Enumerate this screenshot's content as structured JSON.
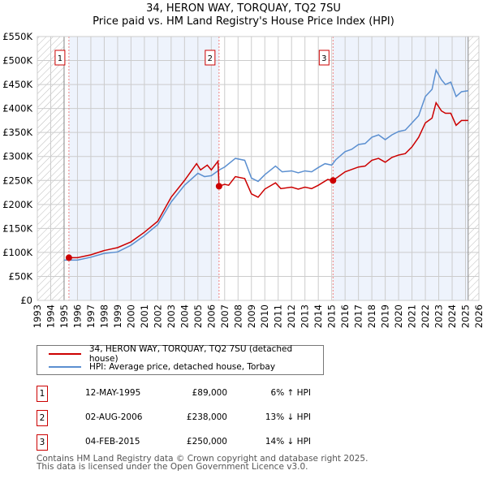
{
  "title": "34, HERON WAY, TORQUAY, TQ2 7SU",
  "subtitle": "Price paid vs. HM Land Registry's House Price Index (HPI)",
  "chart_data": {
    "type": "line",
    "title": "34, HERON WAY, TORQUAY, TQ2 7SU — Price paid vs. HM Land Registry's House Price Index (HPI)",
    "xlim": [
      1993,
      2026
    ],
    "ylim": [
      0,
      550000
    ],
    "x_ticks": [
      "1993",
      "1994",
      "1995",
      "1996",
      "1997",
      "1998",
      "1999",
      "2000",
      "2001",
      "2002",
      "2003",
      "2004",
      "2005",
      "2006",
      "2007",
      "2008",
      "2009",
      "2010",
      "2011",
      "2012",
      "2013",
      "2014",
      "2015",
      "2016",
      "2017",
      "2018",
      "2019",
      "2020",
      "2021",
      "2022",
      "2023",
      "2024",
      "2025",
      "2026"
    ],
    "y_ticks": [
      "£0",
      "£50K",
      "£100K",
      "£150K",
      "£200K",
      "£250K",
      "£300K",
      "£350K",
      "£400K",
      "£450K",
      "£500K",
      "£550K"
    ],
    "grid": true,
    "legend_position": "below",
    "series": [
      {
        "name": "34, HERON WAY, TORQUAY, TQ2 7SU (detached house)",
        "color": "#cc0000",
        "x": [
          1995.36,
          1996,
          1997,
          1998,
          1999,
          2000,
          2001,
          2002,
          2003,
          2004,
          2004.9,
          2005.2,
          2005.7,
          2006.0,
          2006.5,
          2006.58,
          2007,
          2007.3,
          2007.8,
          2008.5,
          2009.0,
          2009.5,
          2010,
          2010.8,
          2011.2,
          2012,
          2012.5,
          2013,
          2013.5,
          2014,
          2014.7,
          2015.1,
          2016,
          2017,
          2017.5,
          2018,
          2018.5,
          2019,
          2019.5,
          2020,
          2020.5,
          2021,
          2021.5,
          2022,
          2022.5,
          2022.8,
          2023.2,
          2023.5,
          2023.9,
          2024.3,
          2024.7,
          2025.2
        ],
        "y": [
          89000,
          89000,
          95000,
          104000,
          110000,
          122000,
          142000,
          165000,
          215000,
          250000,
          285000,
          272000,
          282000,
          272000,
          290000,
          238000,
          242000,
          240000,
          258000,
          254000,
          222000,
          215000,
          232000,
          245000,
          233000,
          236000,
          232000,
          236000,
          233000,
          240000,
          252000,
          250000,
          268000,
          278000,
          280000,
          292000,
          296000,
          288000,
          298000,
          303000,
          306000,
          320000,
          340000,
          370000,
          380000,
          412000,
          395000,
          390000,
          390000,
          365000,
          375000,
          375000
        ]
      },
      {
        "name": "HPI: Average price, detached house, Torbay",
        "color": "#5b8fd0",
        "x": [
          1995.0,
          1996,
          1997,
          1998,
          1999,
          2000,
          2001,
          2002,
          2003,
          2004,
          2005,
          2005.5,
          2006,
          2006.6,
          2007,
          2007.8,
          2008.5,
          2009.0,
          2009.5,
          2010,
          2010.8,
          2011.3,
          2012,
          2012.5,
          2013,
          2013.5,
          2014,
          2014.5,
          2015,
          2015.3,
          2016,
          2016.5,
          2017,
          2017.5,
          2018,
          2018.5,
          2019,
          2019.5,
          2020,
          2020.5,
          2021,
          2021.5,
          2022,
          2022.5,
          2022.8,
          2023.2,
          2023.5,
          2023.9,
          2024.3,
          2024.7,
          2025.2
        ],
        "y": [
          84000,
          84000,
          90000,
          98000,
          101000,
          115000,
          135000,
          158000,
          205000,
          240000,
          265000,
          258000,
          260000,
          272000,
          278000,
          296000,
          292000,
          255000,
          248000,
          262000,
          280000,
          268000,
          270000,
          266000,
          270000,
          268000,
          277000,
          285000,
          282000,
          293000,
          310000,
          315000,
          325000,
          327000,
          340000,
          345000,
          335000,
          345000,
          352000,
          355000,
          370000,
          385000,
          425000,
          440000,
          480000,
          460000,
          450000,
          455000,
          425000,
          435000,
          437000
        ]
      }
    ],
    "sales": [
      {
        "label": "1",
        "x": 2006.58,
        "xd": 1995.36,
        "y": 89000
      },
      {
        "label": "2",
        "xd": 2006.58,
        "y": 238000
      },
      {
        "label": "3",
        "xd": 2015.1,
        "y": 250000
      }
    ],
    "shaded_ranges": [
      [
        1995.36,
        2006.58
      ],
      [
        2015.1,
        2025.2
      ]
    ],
    "hatched_ranges": [
      [
        1993,
        1995
      ],
      [
        2025.2,
        2026
      ]
    ]
  },
  "legend": {
    "items": [
      {
        "label": "34, HERON WAY, TORQUAY, TQ2 7SU (detached house)",
        "color": "#cc0000"
      },
      {
        "label": "HPI: Average price, detached house, Torbay",
        "color": "#5b8fd0"
      }
    ]
  },
  "transactions": [
    {
      "num": "1",
      "date": "12-MAY-1995",
      "price": "£89,000",
      "hpi": "6% ↑ HPI"
    },
    {
      "num": "2",
      "date": "02-AUG-2006",
      "price": "£238,000",
      "hpi": "13% ↓ HPI"
    },
    {
      "num": "3",
      "date": "04-FEB-2015",
      "price": "£250,000",
      "hpi": "14% ↓ HPI"
    }
  ],
  "footer": {
    "line1": "Contains HM Land Registry data © Crown copyright and database right 2025.",
    "line2": "This data is licensed under the Open Government Licence v3.0."
  }
}
